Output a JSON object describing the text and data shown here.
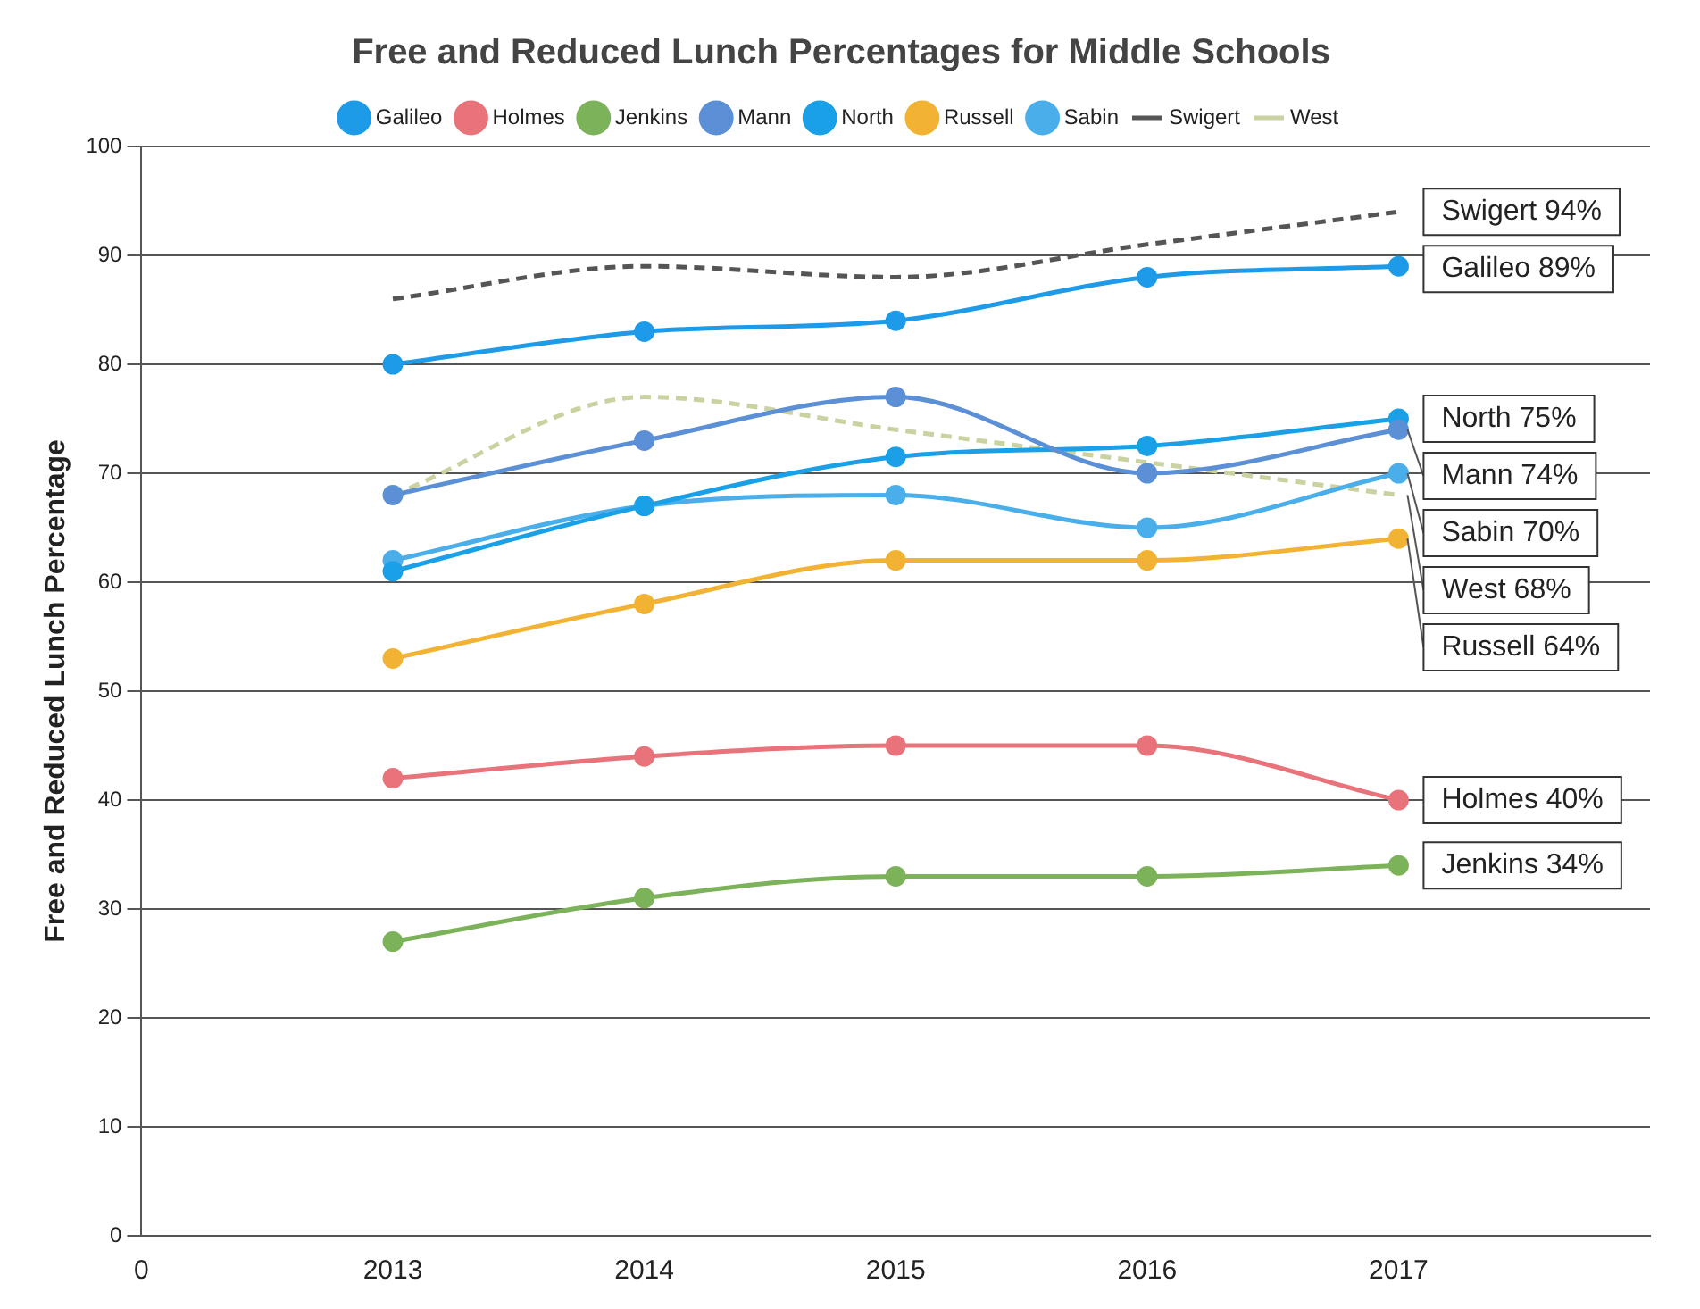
{
  "chart_data": {
    "type": "line",
    "title": "Free and Reduced Lunch Percentages for Middle Schools",
    "ylabel": "Free and Reduced Lunch Percentage",
    "categories": [
      "0",
      "2013",
      "2014",
      "2015",
      "2016",
      "2017",
      null
    ],
    "ylim": [
      0,
      100
    ],
    "yticks": [
      0,
      10,
      20,
      30,
      40,
      50,
      60,
      70,
      80,
      90,
      100
    ],
    "grid": "y",
    "legend": "top",
    "series": [
      {
        "name": "Galileo",
        "color": "#1e9be8",
        "marker": "circle",
        "values": [
          null,
          80,
          83,
          84,
          88,
          89,
          null
        ]
      },
      {
        "name": "Holmes",
        "color": "#e8737a",
        "marker": "circle",
        "values": [
          null,
          42,
          44,
          45,
          45,
          40,
          null
        ]
      },
      {
        "name": "Jenkins",
        "color": "#7cb35a",
        "marker": "circle",
        "values": [
          null,
          27,
          31,
          33,
          33,
          34,
          null
        ]
      },
      {
        "name": "Mann",
        "color": "#5b8fd6",
        "marker": "circle",
        "values": [
          null,
          68,
          73,
          77,
          70,
          74,
          null
        ]
      },
      {
        "name": "North",
        "color": "#1aa0e6",
        "marker": "circle",
        "values": [
          null,
          61,
          67,
          71.5,
          72.5,
          75,
          null
        ]
      },
      {
        "name": "Russell",
        "color": "#f2b233",
        "marker": "circle",
        "values": [
          null,
          53,
          58,
          62,
          62,
          64,
          null
        ]
      },
      {
        "name": "Sabin",
        "color": "#4aaeea",
        "marker": "circle",
        "values": [
          null,
          62,
          67,
          68,
          65,
          70,
          null
        ]
      },
      {
        "name": "Swigert",
        "color": "#555555",
        "marker": "none",
        "line_style": "dashed",
        "values": [
          null,
          86,
          89,
          88,
          91,
          94,
          null
        ]
      },
      {
        "name": "West",
        "color": "#c9d2a0",
        "marker": "none",
        "line_style": "dashed",
        "values": [
          null,
          68,
          77,
          74,
          71,
          68,
          null
        ]
      }
    ],
    "annotations": [
      {
        "text": "Swigert 94%",
        "x": "2017",
        "y": 94
      },
      {
        "text": "Galileo 89%",
        "x": "2017",
        "y": 89
      },
      {
        "text": "North 75%",
        "x": "2017",
        "y": 75
      },
      {
        "text": "Mann 74%",
        "x": "2017",
        "y": 74
      },
      {
        "text": "Sabin 70%",
        "x": "2017",
        "y": 70
      },
      {
        "text": "West 68%",
        "x": "2017",
        "y": 68
      },
      {
        "text": "Russell 64%",
        "x": "2017",
        "y": 64
      },
      {
        "text": "Holmes 40%",
        "x": "2017",
        "y": 40
      },
      {
        "text": "Jenkins 34%",
        "x": "2017",
        "y": 34
      }
    ]
  }
}
